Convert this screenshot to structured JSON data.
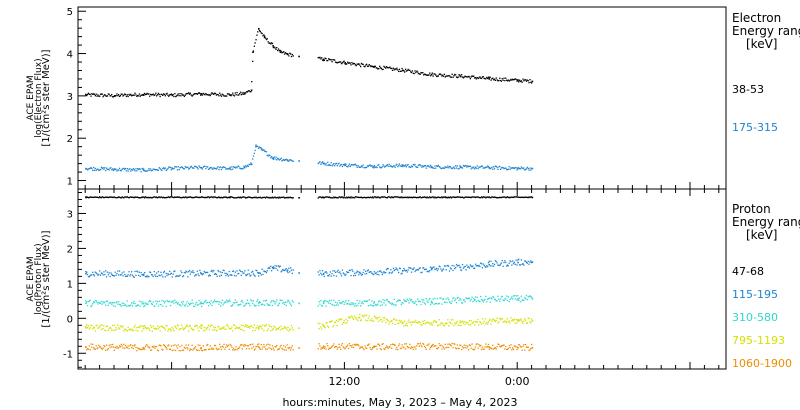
{
  "chart_data": [
    {
      "type": "scatter",
      "title": "",
      "ylabel_lines": [
        "ACE EPAM",
        "log(Electron Flux)",
        "[1/(cm²s ster MeV)]"
      ],
      "ylim": [
        0.8,
        5.1
      ],
      "yticks": [
        "1",
        "2",
        "3",
        "4",
        "5"
      ],
      "legend_title": [
        "Electron",
        "Energy ranges",
        "[keV]"
      ],
      "series": [
        {
          "name": "38-53",
          "color": "#000000",
          "points": [
            [
              -30,
              3.04
            ],
            [
              -28,
              3.02
            ],
            [
              -26,
              3.05
            ],
            [
              -24,
              3.03
            ],
            [
              -22,
              3.06
            ],
            [
              -20,
              3.04
            ],
            [
              -19,
              3.07
            ],
            [
              -18.5,
              3.15
            ],
            [
              -18.4,
              4.05
            ],
            [
              -18,
              4.6
            ],
            [
              -17.6,
              4.4
            ],
            [
              -17,
              4.2
            ],
            [
              -16.5,
              4.05
            ],
            [
              -16,
              4.0
            ],
            [
              -15.2,
              3.95
            ],
            [
              -13.5,
              3.88
            ],
            [
              -12,
              3.8
            ],
            [
              -10,
              3.7
            ],
            [
              -8,
              3.62
            ],
            [
              -6,
              3.52
            ],
            [
              -4,
              3.48
            ],
            [
              -2,
              3.42
            ],
            [
              0,
              3.38
            ],
            [
              1,
              3.36
            ]
          ]
        },
        {
          "name": "175-315",
          "color": "#1e84d0",
          "points": [
            [
              -30,
              1.3
            ],
            [
              -28,
              1.28
            ],
            [
              -26,
              1.26
            ],
            [
              -24,
              1.3
            ],
            [
              -22,
              1.32
            ],
            [
              -20,
              1.3
            ],
            [
              -19,
              1.33
            ],
            [
              -18.5,
              1.4
            ],
            [
              -18.2,
              1.82
            ],
            [
              -17.8,
              1.75
            ],
            [
              -17,
              1.55
            ],
            [
              -16,
              1.5
            ],
            [
              -15.2,
              1.48
            ],
            [
              -13.5,
              1.42
            ],
            [
              -12,
              1.38
            ],
            [
              -10,
              1.35
            ],
            [
              -8,
              1.37
            ],
            [
              -6,
              1.34
            ],
            [
              -4,
              1.33
            ],
            [
              -2,
              1.32
            ],
            [
              0,
              1.3
            ],
            [
              1,
              1.3
            ]
          ]
        }
      ]
    },
    {
      "type": "scatter",
      "title": "",
      "ylabel_lines": [
        "ACE EPAM",
        "log(Proton Flux)",
        "[1/(cm²s ster MeV)]"
      ],
      "ylim": [
        -1.45,
        3.7
      ],
      "yticks": [
        "-1",
        "0",
        "1",
        "2",
        "3"
      ],
      "legend_title": [
        "Proton",
        "Energy ranges",
        "[keV]"
      ],
      "series": [
        {
          "name": "47-68",
          "color": "#000000",
          "points": [
            [
              -30,
              3.48
            ],
            [
              -20,
              3.48
            ],
            [
              -15.2,
              3.47
            ],
            [
              -13.5,
              3.48
            ],
            [
              -5,
              3.48
            ],
            [
              1,
              3.48
            ]
          ]
        },
        {
          "name": "115-195",
          "color": "#1e84d0",
          "points": [
            [
              -30,
              1.3
            ],
            [
              -26,
              1.28
            ],
            [
              -22,
              1.3
            ],
            [
              -18,
              1.32
            ],
            [
              -17,
              1.45
            ],
            [
              -16,
              1.4
            ],
            [
              -15.2,
              1.32
            ],
            [
              -13.5,
              1.3
            ],
            [
              -11,
              1.33
            ],
            [
              -8,
              1.38
            ],
            [
              -6,
              1.42
            ],
            [
              -4,
              1.48
            ],
            [
              -2,
              1.56
            ],
            [
              0,
              1.62
            ],
            [
              1,
              1.63
            ]
          ]
        },
        {
          "name": "310-580",
          "color": "#2ed8d0",
          "points": [
            [
              -30,
              0.45
            ],
            [
              -26,
              0.44
            ],
            [
              -22,
              0.45
            ],
            [
              -18,
              0.46
            ],
            [
              -15.2,
              0.45
            ],
            [
              -13.5,
              0.45
            ],
            [
              -10,
              0.46
            ],
            [
              -6,
              0.5
            ],
            [
              -3,
              0.55
            ],
            [
              0,
              0.58
            ],
            [
              1,
              0.58
            ]
          ]
        },
        {
          "name": "795-1193",
          "color": "#d4e000",
          "points": [
            [
              -30,
              -0.25
            ],
            [
              -26,
              -0.27
            ],
            [
              -22,
              -0.26
            ],
            [
              -18,
              -0.25
            ],
            [
              -15.2,
              -0.26
            ],
            [
              -13.5,
              -0.2
            ],
            [
              -11,
              0.05
            ],
            [
              -8,
              -0.12
            ],
            [
              -4,
              -0.1
            ],
            [
              0,
              -0.05
            ],
            [
              1,
              -0.05
            ]
          ]
        },
        {
          "name": "1060-1900",
          "color": "#f08c00",
          "points": [
            [
              -30,
              -0.8
            ],
            [
              -26,
              -0.82
            ],
            [
              -22,
              -0.82
            ],
            [
              -18,
              -0.8
            ],
            [
              -15.2,
              -0.83
            ],
            [
              -13.5,
              -0.78
            ],
            [
              -10,
              -0.8
            ],
            [
              -6,
              -0.78
            ],
            [
              -2,
              -0.8
            ],
            [
              0,
              -0.82
            ],
            [
              1,
              -0.82
            ]
          ]
        }
      ]
    }
  ],
  "xaxis": {
    "range_hours": [
      -30.5,
      14.5
    ],
    "tick_labels": [
      "12:00",
      "0:00"
    ],
    "tick_values": [
      -12,
      0
    ],
    "label": "hours:minutes, May  3, 2023 – May  4, 2023"
  }
}
